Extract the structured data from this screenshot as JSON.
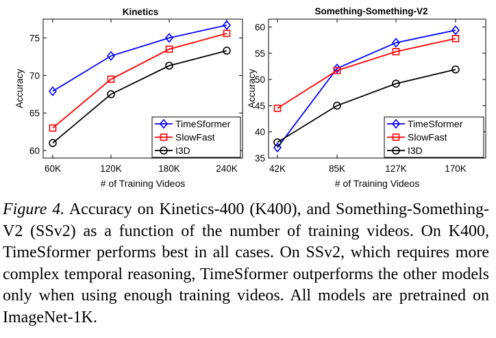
{
  "chart_data": [
    {
      "type": "line",
      "title": "Kinetics",
      "xlabel": "# of Training Videos",
      "ylabel": "Accuracy",
      "categories": [
        "60K",
        "120K",
        "180K",
        "240K"
      ],
      "ylim": [
        59,
        77.5
      ],
      "yticks": [
        "60",
        "65",
        "70",
        "75"
      ],
      "legend_position": "bottom-right",
      "series": [
        {
          "name": "TimeSformer",
          "color": "#0000ff",
          "marker": "diamond",
          "values": [
            67.9,
            72.6,
            75.0,
            76.7
          ]
        },
        {
          "name": "SlowFast",
          "color": "#ff0000",
          "marker": "square",
          "values": [
            63.0,
            69.5,
            73.5,
            75.6
          ]
        },
        {
          "name": "I3D",
          "color": "#000000",
          "marker": "circle",
          "values": [
            61.0,
            67.5,
            71.3,
            73.3
          ]
        }
      ]
    },
    {
      "type": "line",
      "title": "Something-Something-V2",
      "xlabel": "# of Training Videos",
      "ylabel": "Accuracy",
      "categories": [
        "42K",
        "85K",
        "127K",
        "170K"
      ],
      "ylim": [
        35,
        61.5
      ],
      "yticks": [
        "35",
        "40",
        "45",
        "50",
        "55",
        "60"
      ],
      "legend_position": "bottom-right",
      "series": [
        {
          "name": "TimeSformer",
          "color": "#0000ff",
          "marker": "diamond",
          "values": [
            37.0,
            52.1,
            57.0,
            59.4
          ]
        },
        {
          "name": "SlowFast",
          "color": "#ff0000",
          "marker": "square",
          "values": [
            44.5,
            51.7,
            55.3,
            57.8
          ]
        },
        {
          "name": "I3D",
          "color": "#000000",
          "marker": "circle",
          "values": [
            38.0,
            45.0,
            49.2,
            51.9
          ]
        }
      ]
    }
  ],
  "caption": {
    "label": "Figure 4.",
    "text": " Accuracy on Kinetics-400 (K400), and Something-Something-V2 (SSv2) as a function of the number of training videos. On K400, TimeSformer performs best in all cases. On SSv2, which requires more complex temporal reasoning, TimeSformer outperforms the other models only when using enough training videos. All models are pretrained on ImageNet-1K."
  }
}
